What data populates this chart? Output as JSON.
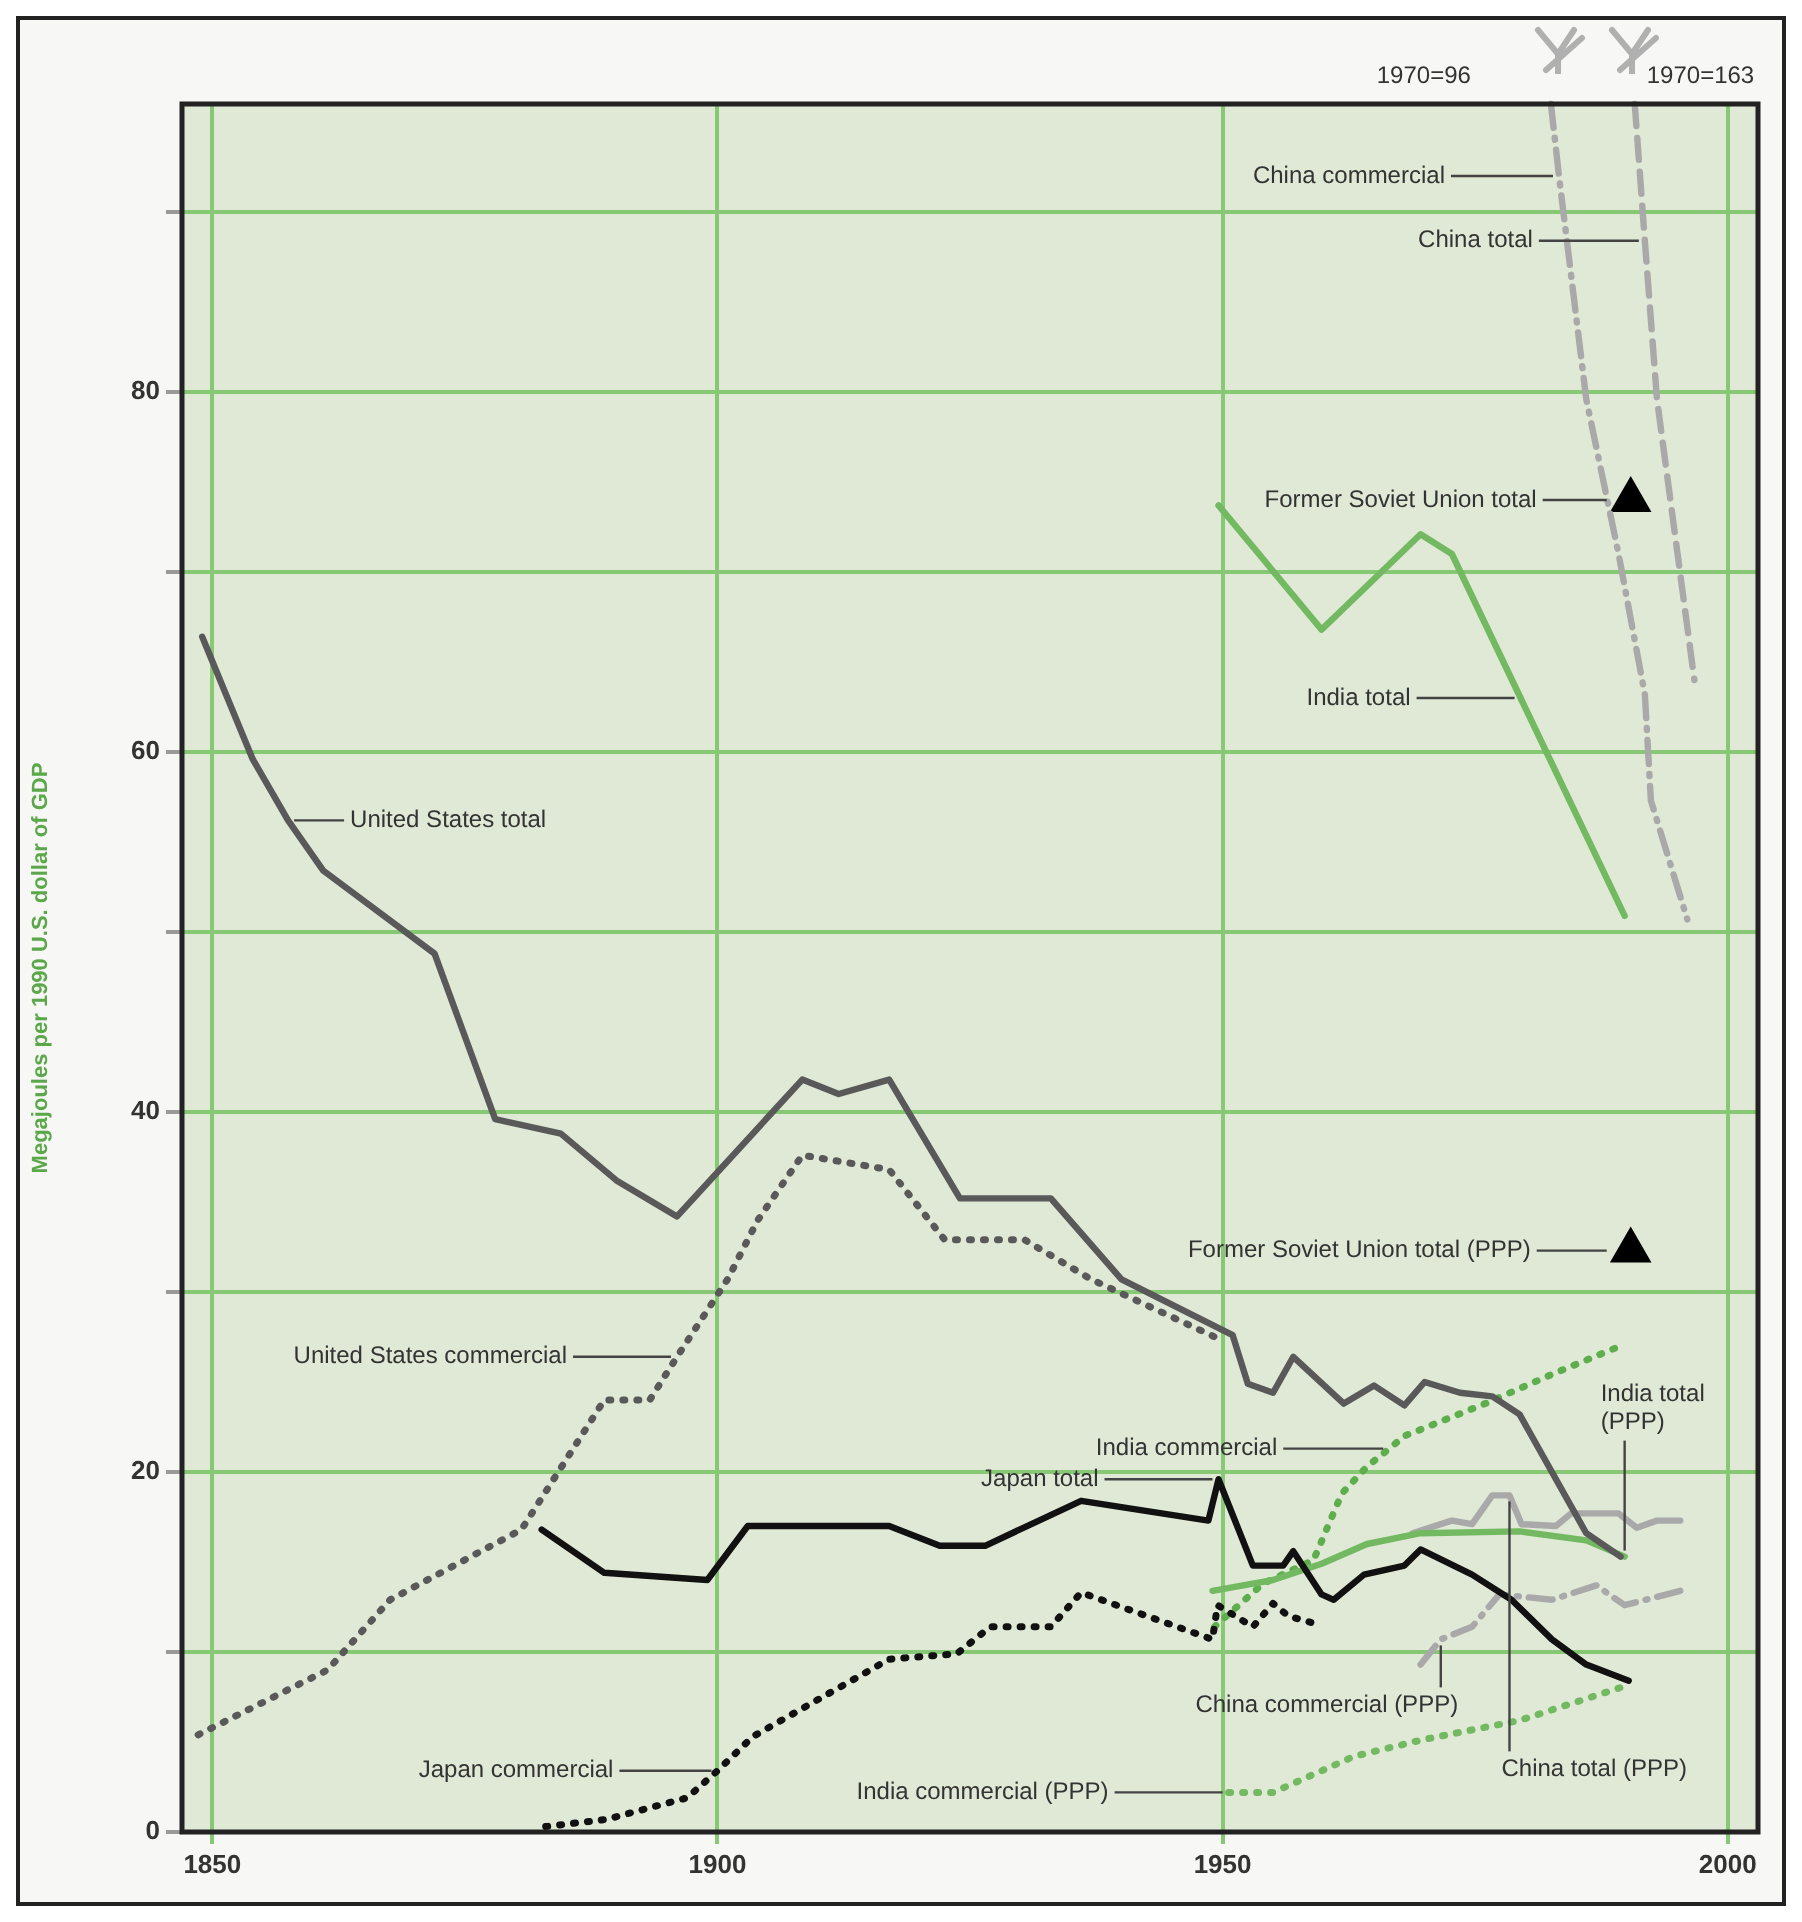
{
  "chart_data": {
    "type": "line",
    "ylabel": "Megajoules per 1990 U.S. dollar of GDP",
    "xlim": [
      1847,
      2003
    ],
    "ylim": [
      0,
      96
    ],
    "xticks": [
      1850,
      1900,
      1950,
      2000
    ],
    "yticks": [
      0,
      {
        "value": 10,
        "label": null
      },
      20,
      {
        "value": 30,
        "label": null
      },
      40,
      {
        "value": 50,
        "label": null
      },
      60,
      {
        "value": 70,
        "label": null
      },
      80,
      {
        "value": 90,
        "label": null
      }
    ],
    "grid": true,
    "legend": false,
    "series": [
      {
        "name": "United States total",
        "color": "#595959",
        "line_style": "solid",
        "x": [
          1849,
          1854,
          1857.5,
          1861,
          1872,
          1878,
          1884.5,
          1890,
          1896,
          1908.4,
          1912,
          1917,
          1924,
          1933,
          1940,
          1951,
          1952.5,
          1955,
          1957,
          1962,
          1965,
          1968,
          1970,
          1973.5,
          1976.7,
          1979.4,
          1981.6,
          1986,
          1989.4
        ],
        "values": [
          66.4,
          59.6,
          56.2,
          53.4,
          48.8,
          39.6,
          38.8,
          36.2,
          34.2,
          41.8,
          41,
          41.8,
          35.2,
          35.2,
          30.7,
          27.6,
          24.9,
          24.4,
          26.4,
          23.8,
          24.8,
          23.7,
          25,
          24.4,
          24.2,
          23.2,
          21,
          16.6,
          15.3
        ]
      },
      {
        "name": "United States commercial",
        "color": "#595959",
        "line_style": "dotted",
        "x": [
          1848.6,
          1861.4,
          1867.6,
          1880.6,
          1888.8,
          1893.3,
          1896,
          1901,
          1904,
          1908.4,
          1917,
          1922.5,
          1930.4,
          1937,
          1950
        ],
        "values": [
          5.4,
          9,
          12.9,
          16.8,
          24,
          24,
          26.4,
          30.7,
          34,
          37.6,
          36.8,
          32.9,
          32.9,
          30.7,
          27.3
        ]
      },
      {
        "name": "Japan total",
        "color": "#111111",
        "line_style": "solid",
        "x": [
          1882.6,
          1888.8,
          1899,
          1903,
          1917,
          1922,
          1926.5,
          1936,
          1948.6,
          1949.6,
          1953,
          1956,
          1957,
          1959.8,
          1961,
          1964,
          1968,
          1969.6,
          1974.7,
          1978.6,
          1982.6,
          1986,
          1990.2
        ],
        "values": [
          16.8,
          14.4,
          14,
          17,
          17,
          15.9,
          15.9,
          18.4,
          17.3,
          19.6,
          14.8,
          14.8,
          15.6,
          13.2,
          12.9,
          14.3,
          14.8,
          15.7,
          14.3,
          12.9,
          10.7,
          9.3,
          8.4
        ]
      },
      {
        "name": "Japan commercial",
        "color": "#111111",
        "line_style": "dotted",
        "x": [
          1883,
          1889,
          1897,
          1900,
          1903.5,
          1917,
          1923.7,
          1927,
          1933,
          1936,
          1949,
          1949.5,
          1953,
          1955,
          1956.5,
          1959
        ],
        "values": [
          0.3,
          0.7,
          1.9,
          3.4,
          5.3,
          9.6,
          9.9,
          11.4,
          11.4,
          13.3,
          10.7,
          12.6,
          11.4,
          12.7,
          12,
          11.6
        ]
      },
      {
        "name": "India total",
        "color": "#72b962",
        "line_style": "solid",
        "x": [
          1949.6,
          1959.8,
          1969.6,
          1972.7,
          1979.5,
          1989.8
        ],
        "values": [
          73.7,
          66.8,
          72.1,
          71,
          63,
          50.9
        ]
      },
      {
        "name": "India total (PPP)",
        "color": "#72b962",
        "line_style": "solid",
        "x": [
          1949,
          1955,
          1959.8,
          1964.3,
          1969.6,
          1979.4,
          1986,
          1989.8
        ],
        "values": [
          13.4,
          14,
          14.9,
          16,
          16.6,
          16.7,
          16.2,
          15.3
        ]
      },
      {
        "name": "India commercial",
        "color": "#5fae4e",
        "line_style": "dotted",
        "x": [
          1949.2,
          1954,
          1959,
          1961.8,
          1964.3,
          1966.5,
          1968,
          1976,
          1982.5,
          1989.8
        ],
        "values": [
          11.4,
          13.8,
          15.1,
          18.8,
          20.3,
          21.3,
          22,
          23.8,
          25.4,
          27.1
        ]
      },
      {
        "name": "India commercial (PPP)",
        "color": "#72b962",
        "line_style": "dotted",
        "x": [
          1950.6,
          1955,
          1963,
          1969.6,
          1979.4,
          1989.8
        ],
        "values": [
          2.2,
          2.2,
          4.2,
          5.1,
          6.2,
          8.1
        ]
      },
      {
        "name": "China commercial",
        "color": "#a9a9a9",
        "line_style": "dashdot",
        "x": [
          1982.5,
          1983.3,
          1986,
          1989.2,
          1991.8,
          1992.4,
          1996
        ],
        "values": [
          96,
          92,
          79.6,
          71,
          63.2,
          57.3,
          50.7
        ]
      },
      {
        "name": "China total",
        "color": "#a9a9a9",
        "line_style": "dashed",
        "x": [
          1990.8,
          1991.8,
          1993,
          1996.7
        ],
        "values": [
          96,
          88.4,
          79.6,
          64
        ]
      },
      {
        "name": "China total (PPP)",
        "color": "#a9a9a9",
        "line_style": "solid",
        "x": [
          1968.8,
          1972.7,
          1974.7,
          1976.7,
          1978.4,
          1979.6,
          1983,
          1984.5,
          1989.2,
          1991,
          1993,
          1995.3
        ],
        "values": [
          16.6,
          17.3,
          17.1,
          18.7,
          18.7,
          17.1,
          17,
          17.7,
          17.7,
          16.9,
          17.3,
          17.3
        ]
      },
      {
        "name": "China commercial (PPP)",
        "color": "#a9a9a9",
        "line_style": "dashdot",
        "x": [
          1969.6,
          1971.6,
          1974.7,
          1977.4,
          1982.6,
          1987,
          1989.8,
          1995.3
        ],
        "values": [
          9.3,
          10.7,
          11.4,
          13.2,
          12.9,
          13.7,
          12.6,
          13.4
        ]
      },
      {
        "name": "Former Soviet Union total",
        "type": "scatter",
        "marker": "triangle",
        "color": "#000000",
        "x": [
          1990.4
        ],
        "values": [
          74
        ]
      },
      {
        "name": "Former Soviet Union total (PPP)",
        "type": "scatter",
        "marker": "triangle",
        "color": "#000000",
        "x": [
          1990.4
        ],
        "values": [
          32.3
        ]
      }
    ],
    "annotations": [
      "1970=96",
      "1970=163"
    ]
  }
}
